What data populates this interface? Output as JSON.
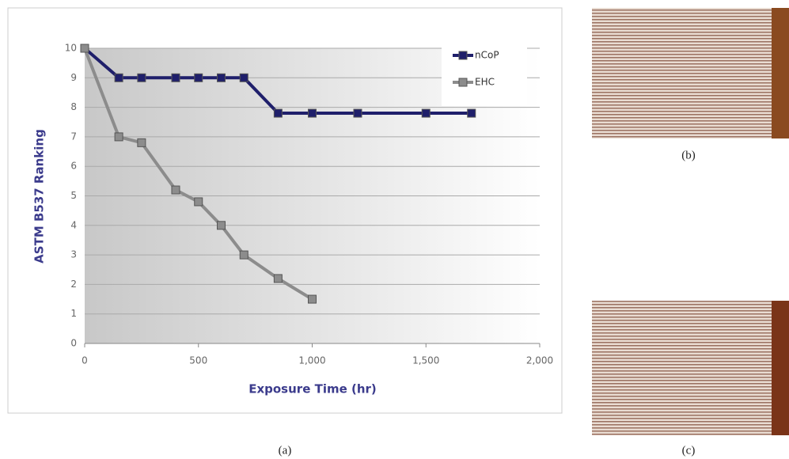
{
  "chart_data": {
    "type": "line",
    "xlabel": "Exposure Time (hr)",
    "ylabel": "ASTM B537 Ranking",
    "xlim": [
      0,
      2000
    ],
    "xticks": [
      0,
      500,
      {
        "value": 1000,
        "label": "1,000"
      },
      {
        "value": 1500,
        "label": "1,500"
      },
      {
        "value": 2000,
        "label": "2,000"
      }
    ],
    "ylim": [
      0,
      10
    ],
    "yticks": [
      0,
      1,
      2,
      3,
      4,
      5,
      6,
      7,
      8,
      9,
      10
    ],
    "grid": true,
    "legend": "upper right",
    "series": [
      {
        "name": "nCoP",
        "color": "#1f1f6b",
        "x": [
          0,
          150,
          250,
          400,
          500,
          600,
          700,
          850,
          1000,
          1200,
          1500,
          1700
        ],
        "values": [
          10,
          9,
          9,
          9,
          9,
          9,
          9,
          7.8,
          7.8,
          7.8,
          7.8,
          7.8
        ]
      },
      {
        "name": "EHC",
        "color": "#8c8c8c",
        "x": [
          0,
          150,
          250,
          400,
          500,
          600,
          700,
          850,
          1000
        ],
        "values": [
          10,
          7,
          6.8,
          5.2,
          4.8,
          4,
          3,
          2.2,
          1.5
        ]
      }
    ]
  },
  "captions": [
    "(a)",
    "(b)",
    "(c)"
  ]
}
